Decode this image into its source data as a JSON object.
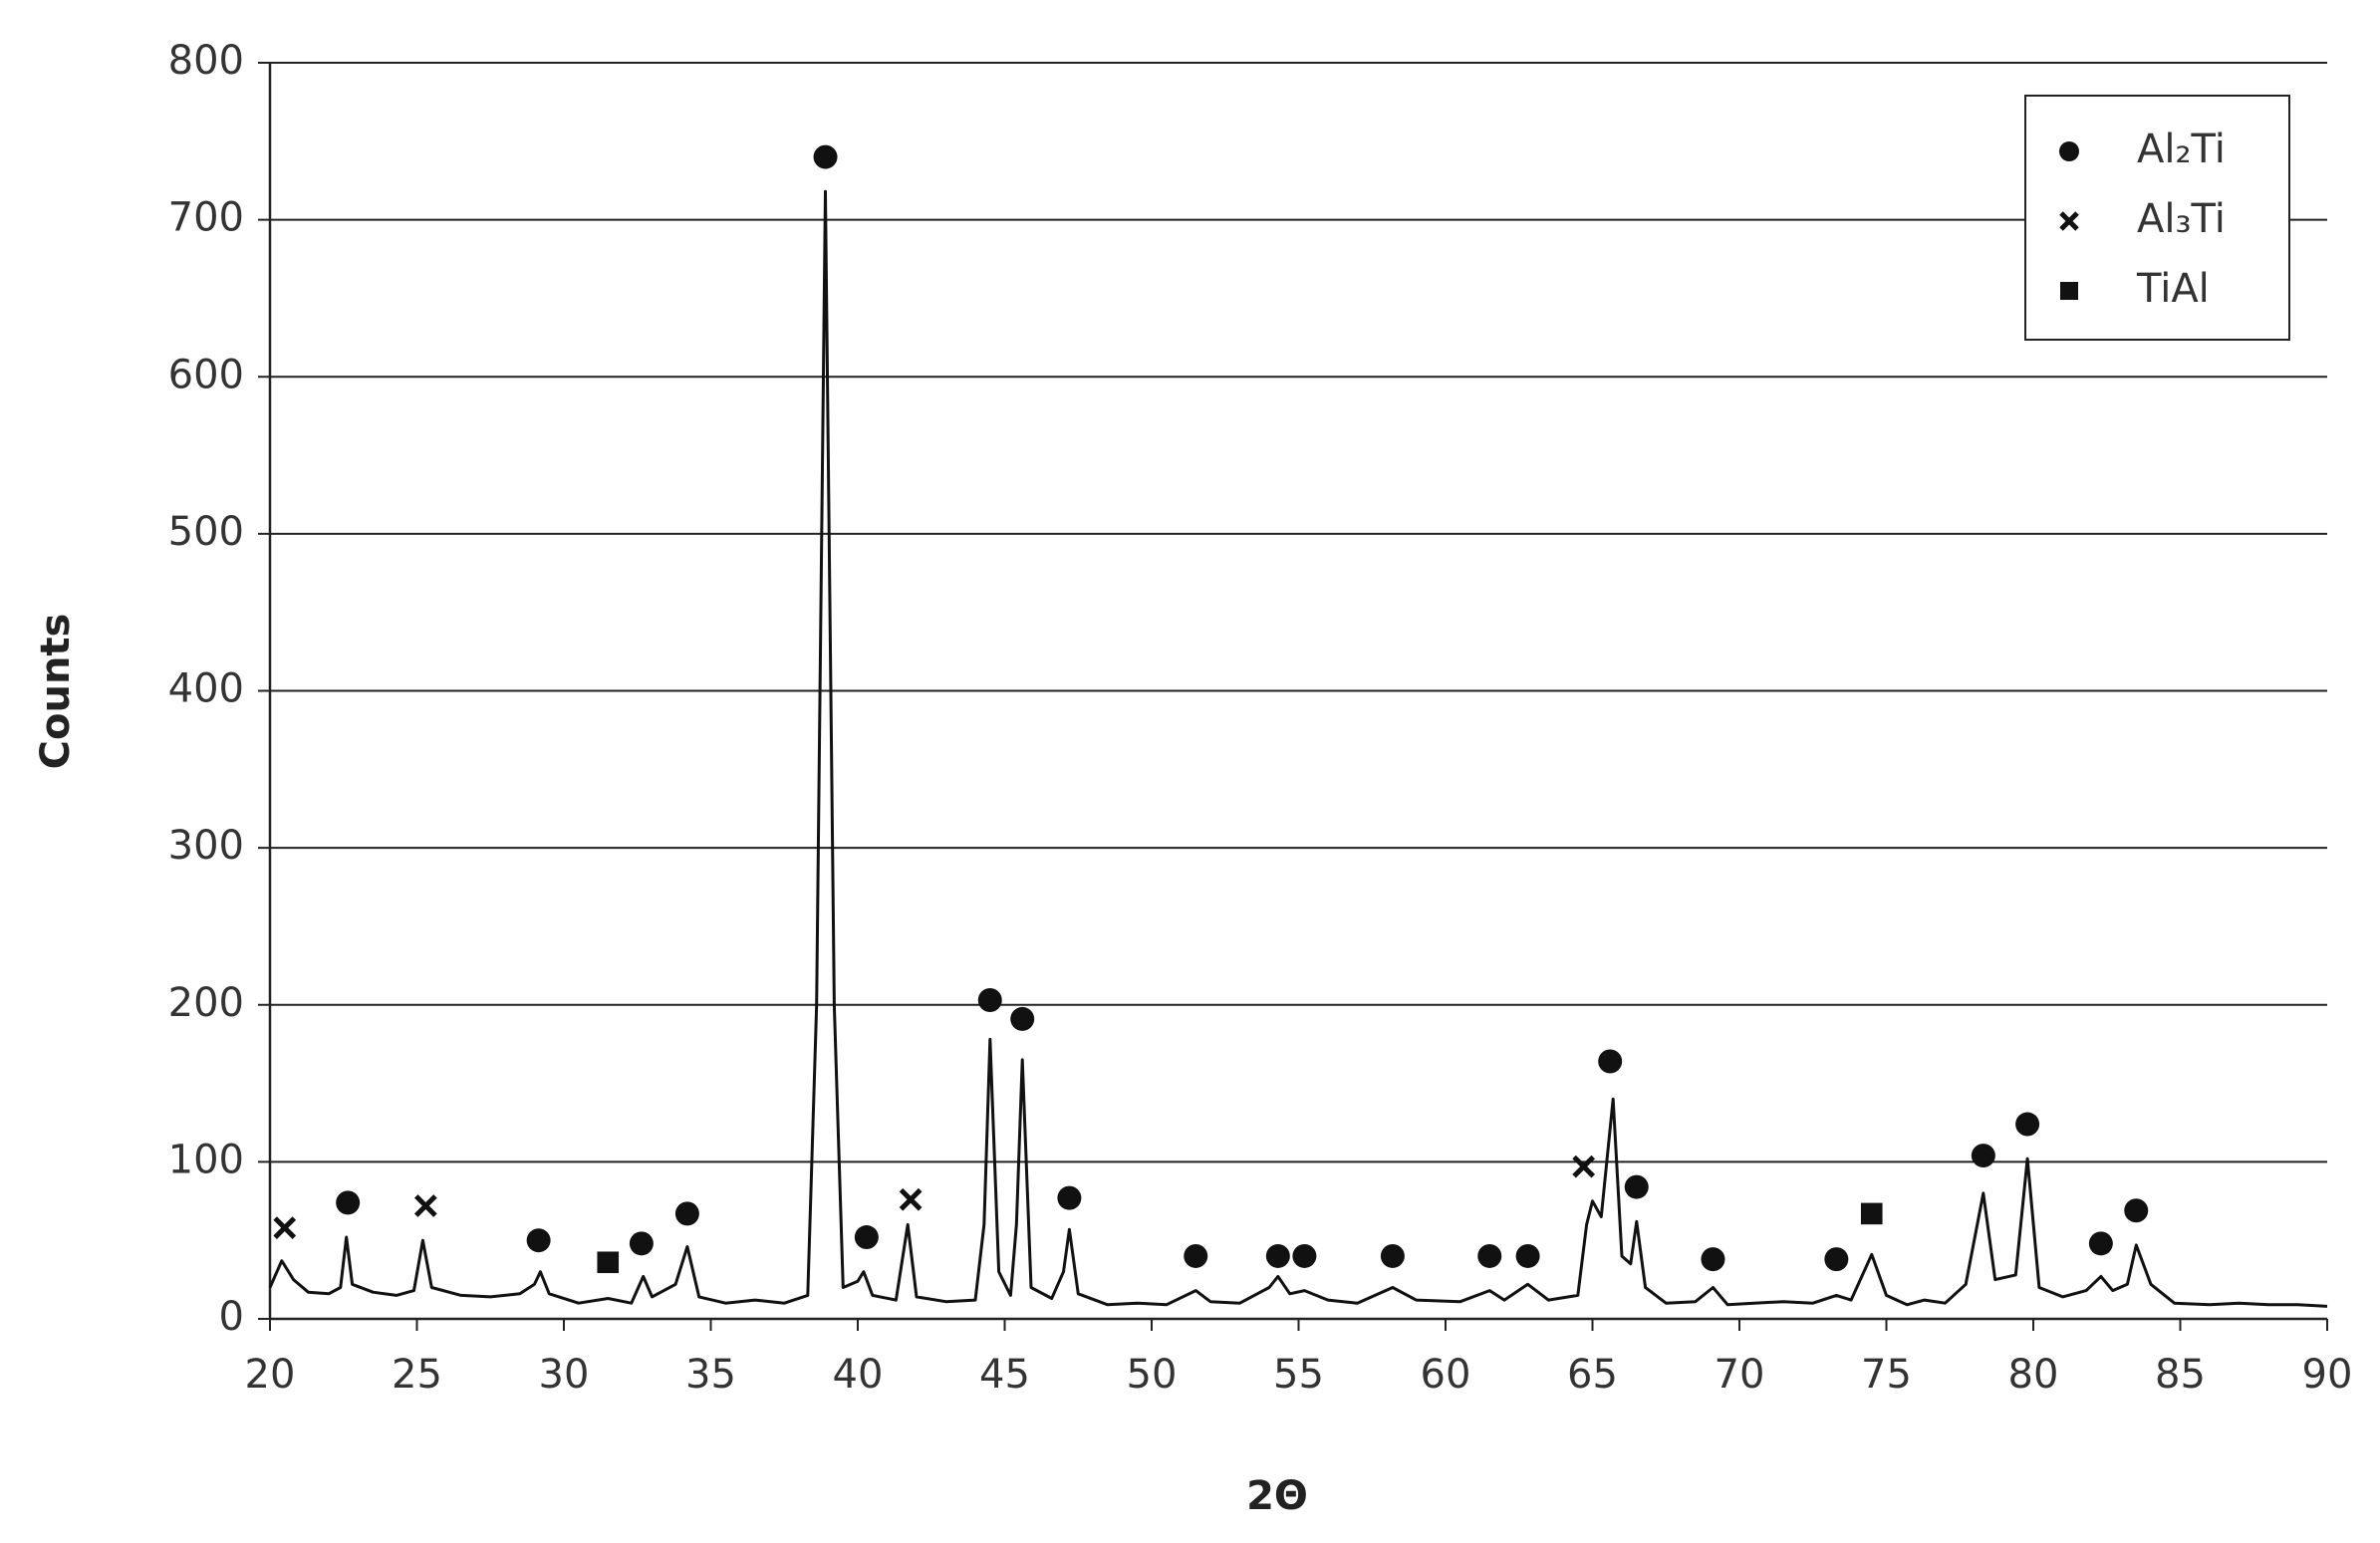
{
  "chart_data": {
    "type": "line",
    "xlabel": "2Θ",
    "ylabel": "Counts",
    "xlim": [
      20,
      90
    ],
    "xticks": [
      20,
      25,
      30,
      35,
      40,
      45,
      50,
      55,
      60,
      65,
      70,
      75,
      80,
      85,
      90
    ],
    "ylim": [
      0,
      800
    ],
    "yticks": [
      0,
      100,
      200,
      300,
      400,
      500,
      600,
      700,
      800
    ],
    "grid": true,
    "legend": "top-right",
    "color": "#111111",
    "x": [
      20,
      20.4,
      20.8,
      21.3,
      22.0,
      22.4,
      22.6,
      22.8,
      23.5,
      24.3,
      24.9,
      25.2,
      25.5,
      26.5,
      27.5,
      28.5,
      29.0,
      29.2,
      29.5,
      30.5,
      31.5,
      32.3,
      32.7,
      33.0,
      33.8,
      34.2,
      34.6,
      35.5,
      36.5,
      37.5,
      38.3,
      38.6,
      38.9,
      39.2,
      39.5,
      40.0,
      40.2,
      40.5,
      41.3,
      41.7,
      42.0,
      43.0,
      44.0,
      44.3,
      44.5,
      44.8,
      45.2,
      45.4,
      45.6,
      45.9,
      46.6,
      47.0,
      47.2,
      47.5,
      48.5,
      49.5,
      50.5,
      51.5,
      52.0,
      53.0,
      54.0,
      54.3,
      54.7,
      55.2,
      56.0,
      57.0,
      58.2,
      59.0,
      60.5,
      61.5,
      62.0,
      62.8,
      63.5,
      64.5,
      64.8,
      65.0,
      65.3,
      65.7,
      66.0,
      66.3,
      66.5,
      66.8,
      67.5,
      68.5,
      69.1,
      69.6,
      70.5,
      71.5,
      72.5,
      73.3,
      73.8,
      74.5,
      75.0,
      75.7,
      76.3,
      77.0,
      77.7,
      78.3,
      78.7,
      79.4,
      79.8,
      80.2,
      81.0,
      81.8,
      82.3,
      82.7,
      83.2,
      83.5,
      84.0,
      84.8,
      86.0,
      87.0,
      88.0,
      89.0,
      90.0
    ],
    "values": [
      20,
      37,
      25,
      17,
      16,
      20,
      52,
      22,
      17,
      15,
      18,
      50,
      20,
      15,
      14,
      16,
      22,
      30,
      16,
      10,
      13,
      10,
      27,
      14,
      22,
      46,
      14,
      10,
      12,
      10,
      15,
      200,
      718,
      200,
      20,
      24,
      30,
      15,
      12,
      60,
      14,
      11,
      12,
      60,
      178,
      30,
      15,
      60,
      165,
      20,
      13,
      30,
      57,
      16,
      9,
      10,
      9,
      18,
      11,
      10,
      20,
      27,
      16,
      18,
      12,
      10,
      20,
      12,
      11,
      18,
      12,
      22,
      12,
      15,
      60,
      75,
      65,
      140,
      40,
      35,
      62,
      20,
      10,
      11,
      20,
      9,
      10,
      11,
      10,
      15,
      12,
      41,
      15,
      9,
      12,
      10,
      22,
      80,
      25,
      28,
      102,
      20,
      14,
      18,
      27,
      18,
      22,
      47,
      22,
      10,
      9,
      10,
      9,
      9,
      8
    ],
    "markers": [
      {
        "name": "Al₂Ti",
        "marker": "circle",
        "color": "#111111",
        "x": [
          22.65,
          29.14,
          32.64,
          34.2,
          38.9,
          40.3,
          44.5,
          45.6,
          47.2,
          51.5,
          54.3,
          55.2,
          58.2,
          61.5,
          62.8,
          65.6,
          66.5,
          69.1,
          73.3,
          78.3,
          79.8,
          82.3,
          83.5
        ],
        "values": [
          74,
          50,
          48,
          67,
          740,
          52,
          203,
          191,
          77,
          40,
          40,
          40,
          40,
          40,
          40,
          164,
          84,
          38,
          38,
          104,
          124,
          48,
          69
        ]
      },
      {
        "name": "Al₃Ti",
        "marker": "x",
        "color": "#111111",
        "x": [
          20.5,
          25.3,
          41.8,
          64.7
        ],
        "values": [
          58,
          72,
          76,
          97
        ]
      },
      {
        "name": "TiAl",
        "marker": "square",
        "color": "#111111",
        "x": [
          31.5,
          74.5
        ],
        "values": [
          36,
          67
        ]
      }
    ]
  }
}
